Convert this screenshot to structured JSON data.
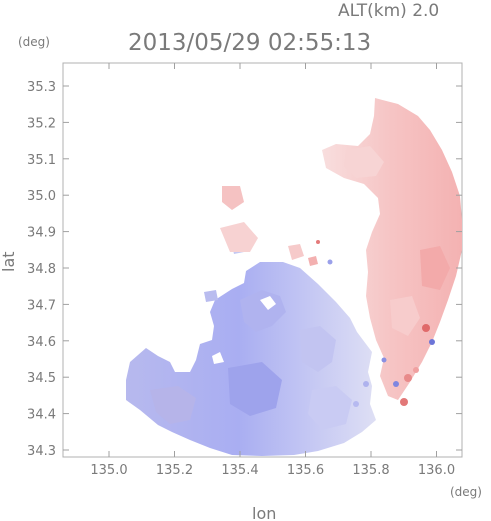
{
  "header": {
    "altitude_label": "ALT(km) 2.0",
    "timestamp": "2013/05/29 02:55:13"
  },
  "axes": {
    "y_unit": "(deg)",
    "x_unit": "(deg)",
    "y_label": "lat",
    "x_label": "lon",
    "lat_ticks": [
      "35.3",
      "35.2",
      "35.1",
      "35.0",
      "34.9",
      "34.8",
      "34.7",
      "34.6",
      "34.5",
      "34.4",
      "34.3"
    ],
    "lon_ticks": [
      "135.0",
      "135.2",
      "135.4",
      "135.6",
      "135.8",
      "136.0"
    ]
  },
  "colors": {
    "approaching": "#a9aef0",
    "receding": "#f6b9b9",
    "axis": "#a0a0a0",
    "text": "#7a7a7a"
  }
}
